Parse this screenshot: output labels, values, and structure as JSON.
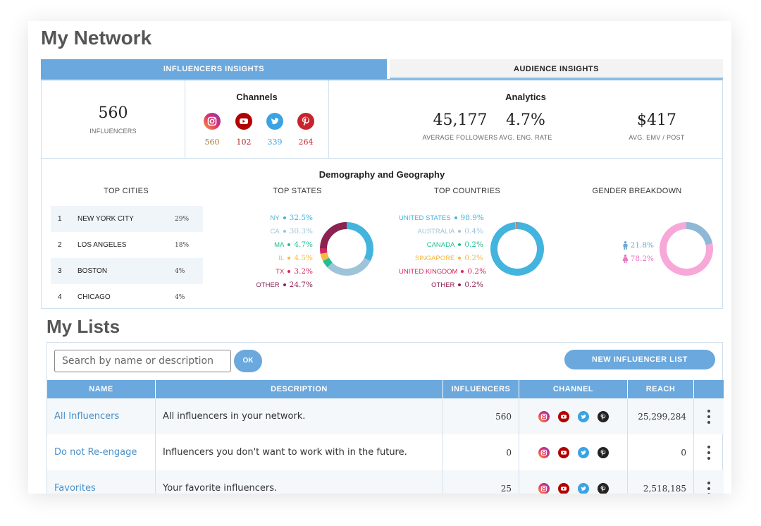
{
  "page_title": "My Network",
  "tabs": [
    {
      "label": "INFLUENCERS INSIGHTS",
      "active": true
    },
    {
      "label": "AUDIENCE INSIGHTS",
      "active": false
    }
  ],
  "summary": {
    "influencers_count": "560",
    "influencers_label": "INFLUENCERS",
    "channels_title": "Channels",
    "channels": [
      {
        "icon": "instagram-icon",
        "count": "560",
        "color": "#b07a3a"
      },
      {
        "icon": "youtube-icon",
        "count": "102",
        "color": "#b22222"
      },
      {
        "icon": "twitter-icon",
        "count": "339",
        "color": "#3aa3e3"
      },
      {
        "icon": "pinterest-icon",
        "count": "264",
        "color": "#c8232c"
      }
    ],
    "analytics_title": "Analytics",
    "analytics": [
      {
        "value": "45,177",
        "label": "AVERAGE FOLLOWERS"
      },
      {
        "value": "4.7%",
        "label": "AVG. ENG. RATE"
      },
      {
        "value": "$417",
        "label": "AVG. EMV / POST"
      }
    ]
  },
  "demography": {
    "title": "Demography and Geography",
    "top_cities": {
      "title": "TOP CITIES",
      "rows": [
        {
          "rank": "1",
          "name": "NEW YORK CITY",
          "pct": "29%"
        },
        {
          "rank": "2",
          "name": "LOS ANGELES",
          "pct": "18%"
        },
        {
          "rank": "3",
          "name": "BOSTON",
          "pct": "4%"
        },
        {
          "rank": "4",
          "name": "CHICAGO",
          "pct": "4%"
        }
      ]
    },
    "top_states": {
      "title": "TOP STATES",
      "items": [
        {
          "name": "NY",
          "value": "32.5%",
          "share": 32.5,
          "color": "#42b4dd"
        },
        {
          "name": "CA",
          "value": "30.3%",
          "share": 30.3,
          "color": "#9fc3d8"
        },
        {
          "name": "MA",
          "value": "4.7%",
          "share": 4.7,
          "color": "#1fbf8f"
        },
        {
          "name": "IL",
          "value": "4.5%",
          "share": 4.5,
          "color": "#f5b942"
        },
        {
          "name": "TX",
          "value": "3.2%",
          "share": 3.2,
          "color": "#d6245f"
        },
        {
          "name": "OTHER",
          "value": "24.7%",
          "share": 24.7,
          "color": "#8b2250"
        }
      ]
    },
    "top_countries": {
      "title": "TOP COUNTRIES",
      "items": [
        {
          "name": "UNITED STATES",
          "value": "98.9%",
          "share": 98.9,
          "color": "#42b4dd"
        },
        {
          "name": "AUSTRALIA",
          "value": "0.4%",
          "share": 0.4,
          "color": "#9fc3d8"
        },
        {
          "name": "CANADA",
          "value": "0.2%",
          "share": 0.2,
          "color": "#1fbf8f"
        },
        {
          "name": "SINGAPORE",
          "value": "0.2%",
          "share": 0.2,
          "color": "#f5b942"
        },
        {
          "name": "UNITED KINGDOM",
          "value": "0.2%",
          "share": 0.2,
          "color": "#d6245f"
        },
        {
          "name": "OTHER",
          "value": "0.2%",
          "share": 0.2,
          "color": "#8b2250"
        }
      ]
    },
    "gender": {
      "title": "GENDER BREAKDOWN",
      "items": [
        {
          "icon": "male-icon",
          "value": "21.8%",
          "share": 21.8,
          "color": "#8fb8d6"
        },
        {
          "icon": "female-icon",
          "value": "78.2%",
          "share": 78.2,
          "color": "#f7a8d8"
        }
      ]
    }
  },
  "lists": {
    "title": "My Lists",
    "search_placeholder": "Search by name or description",
    "ok_label": "OK",
    "new_list_label": "NEW INFLUENCER LIST",
    "columns": [
      "NAME",
      "DESCRIPTION",
      "INFLUENCERS",
      "CHANNEL",
      "REACH",
      ""
    ],
    "rows": [
      {
        "name": "All Influencers",
        "description": "All influencers in your network.",
        "influencers": "560",
        "reach": "25,299,284"
      },
      {
        "name": "Do not Re-engage",
        "description": "Influencers you don't want to work with in the future.",
        "influencers": "0",
        "reach": "0"
      },
      {
        "name": "Favorites",
        "description": "Your favorite influencers.",
        "influencers": "25",
        "reach": "2,518,185"
      }
    ]
  },
  "colors": {
    "accent": "#6aa8dd",
    "instagram": "#c13584",
    "youtube": "#b30000",
    "twitter": "#3aa3e3",
    "pinterest": "#c8232c"
  }
}
